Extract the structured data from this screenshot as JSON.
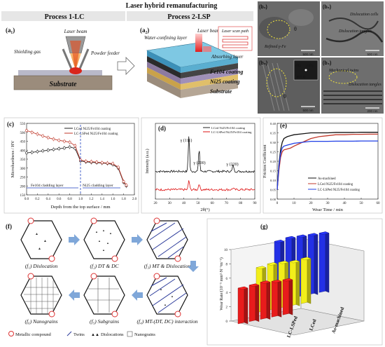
{
  "header": {
    "title": "Laser hybrid remanufacturing",
    "process1": "Process 1-LC",
    "process2": "Process 2-LSP"
  },
  "panel_a1": {
    "label": "(a₁)",
    "laser_beam": "Laser beam",
    "shielding_gas": "Shielding gas",
    "powder_feeder": "Powder feeder",
    "substrate": "Substrate"
  },
  "panel_a2": {
    "label": "(a₂)",
    "water_layer": "Water-confining layer",
    "laser_beam": "Laser beam",
    "scan_path": "Laser scan path",
    "absorbing_layer": "Absorbing layer",
    "fe104": "Fe104 coating",
    "ni25": "Ni25 coating",
    "substrate": "Substrate"
  },
  "panel_b": {
    "b1": {
      "label": "(b₁)",
      "theta": "θ",
      "anno": "Refined γ-Fe",
      "scale": "500 nm"
    },
    "b2": {
      "label": "(b₂)",
      "anno1": "Dislocation cells",
      "anno2": "Dislocation tangles",
      "scale": "500 nm"
    },
    "b3": {
      "label": "(b₃)",
      "theta": "θ",
      "inset1": "(1̅1)",
      "inset2": "(11̅1)",
      "inset3": "[0 1 1]",
      "scale": "500 nm"
    },
    "b4": {
      "label": "(b₄)",
      "anno1": "Mechanical twins",
      "anno2": "Dislocation tangles",
      "scale": "200 nm"
    }
  },
  "panel_c": {
    "label": "(c)",
    "ylabel": "Microhardness / HV",
    "xlabel": "Depth from the top surface / mm",
    "legend": [
      "LCed Ni25/Fe104 coating",
      "LC-LSPed Ni25/Fe104 coating"
    ],
    "fe_layer": "Fe104 cladding layer",
    "ni_layer": "Ni25 cladding layer",
    "colors": {
      "lc": "#222222",
      "lsp": "#c0392b",
      "layer": "#1f3fbf"
    }
  },
  "panel_d": {
    "label": "(d)",
    "ylabel": "Intensity (a.u.)",
    "xlabel": "2θ(°)",
    "legend": [
      "LCed Ni25/Fe104 coating",
      "LC-LSPed Ni25/Fe104 coating"
    ],
    "peaks": [
      "γ (111)",
      "γ (200)",
      "γ (220)"
    ]
  },
  "panel_e": {
    "label": "(e)",
    "ylabel": "Friction Coefficient",
    "xlabel": "Wear Time / min",
    "legend": [
      "As-machined",
      "LCed Ni25/Fe104 coating",
      "LC-LSPed Ni25/Fe104 coating"
    ]
  },
  "panel_f": {
    "label": "(f)",
    "captions": [
      "(f₁) Dislocation",
      "(f₂) DT & DC",
      "(f₃) MT & Dislocation",
      "(f₆) Nanograins",
      "(f₅) Subgrains",
      "(f₄) MT-(DT, DC) interaction"
    ],
    "legend": [
      "Metallic compound",
      "Twins",
      "Dislocations",
      "Nanograins"
    ]
  },
  "panel_g": {
    "label": "(g)",
    "zlabel": "Wear Rate/(10⁻⁵ mm³·N⁻¹m⁻¹)",
    "groups": [
      "LC-LSPed",
      "LCed",
      "As-machined"
    ]
  },
  "chart_data": [
    {
      "type": "line",
      "title": "",
      "xlabel": "Depth from the top surface / mm",
      "ylabel": "Microhardness / HV",
      "xlim": [
        0.0,
        2.0
      ],
      "ylim": [
        150,
        550
      ],
      "xticks": [
        "0.0",
        "0.2",
        "0.4",
        "0.6",
        "0.8",
        "1.0",
        "1.2",
        "1.4",
        "1.6",
        "1.8",
        "2.0"
      ],
      "yticks": [
        "150",
        "200",
        "250",
        "300",
        "350",
        "400",
        "450",
        "500",
        "550"
      ],
      "legend": "top-right",
      "x": [
        0.0,
        0.1,
        0.2,
        0.3,
        0.4,
        0.5,
        0.6,
        0.7,
        0.8,
        0.9,
        1.0,
        1.1,
        1.2,
        1.3,
        1.4,
        1.5,
        1.6,
        1.7,
        1.8,
        1.85
      ],
      "series": [
        {
          "name": "LCed Ni25/Fe104 coating",
          "values": [
            385,
            388,
            392,
            396,
            400,
            404,
            408,
            412,
            418,
            410,
            340,
            335,
            332,
            330,
            328,
            326,
            320,
            300,
            220,
            200
          ]
        },
        {
          "name": "LC-LSPed Ni25/Fe104 coating",
          "values": [
            510,
            500,
            490,
            480,
            470,
            462,
            455,
            450,
            445,
            425,
            345,
            338,
            336,
            333,
            330,
            328,
            325,
            305,
            225,
            205
          ]
        }
      ]
    },
    {
      "type": "line",
      "title": "",
      "xlabel": "2θ(°)",
      "ylabel": "Intensity (a.u.)",
      "xlim": [
        20,
        90
      ],
      "xticks": [
        "20",
        "30",
        "40",
        "50",
        "60",
        "70",
        "80",
        "90"
      ],
      "legend": "top-right",
      "peaks_2theta": [
        43.6,
        50.8,
        74.7
      ],
      "series": [
        {
          "name": "LCed Ni25/Fe104 coating",
          "peak_heights": [
            1.0,
            0.62,
            0.18
          ]
        },
        {
          "name": "LC-LSPed Ni25/Fe104 coating",
          "peak_heights": [
            0.45,
            0.3,
            0.08
          ]
        }
      ]
    },
    {
      "type": "line",
      "title": "",
      "xlabel": "Wear Time / min",
      "ylabel": "Friction Coefficient",
      "xlim": [
        0,
        60
      ],
      "ylim": [
        0.0,
        0.4
      ],
      "xticks": [
        "0",
        "10",
        "20",
        "30",
        "40",
        "50",
        "60"
      ],
      "yticks": [
        "0.00",
        "0.05",
        "0.10",
        "0.15",
        "0.20",
        "0.25",
        "0.30",
        "0.35",
        "0.40"
      ],
      "legend": "bottom-right",
      "x": [
        0,
        1,
        2,
        3,
        4,
        6,
        8,
        10,
        15,
        20,
        25,
        30,
        35,
        40,
        45,
        50,
        55,
        60
      ],
      "series": [
        {
          "name": "As-machined",
          "values": [
            0.05,
            0.18,
            0.26,
            0.3,
            0.32,
            0.33,
            0.335,
            0.34,
            0.345,
            0.35,
            0.35,
            0.35,
            0.352,
            0.352,
            0.352,
            0.353,
            0.353,
            0.353
          ]
        },
        {
          "name": "LCed Ni25/Fe104 coating",
          "values": [
            0.05,
            0.15,
            0.22,
            0.25,
            0.26,
            0.265,
            0.27,
            0.28,
            0.3,
            0.32,
            0.33,
            0.335,
            0.34,
            0.34,
            0.342,
            0.342,
            0.343,
            0.343
          ]
        },
        {
          "name": "LC-LSPed Ni25/Fe104 coating",
          "values": [
            0.05,
            0.17,
            0.24,
            0.27,
            0.28,
            0.285,
            0.29,
            0.295,
            0.3,
            0.305,
            0.305,
            0.305,
            0.306,
            0.306,
            0.306,
            0.307,
            0.307,
            0.307
          ]
        }
      ]
    },
    {
      "type": "bar",
      "title": "",
      "zlabel": "Wear Rate/(10⁻⁵ mm³·N⁻¹m⁻¹)",
      "zlim": [
        0,
        10
      ],
      "zticks": [
        "0",
        "2",
        "4",
        "6",
        "8",
        "10"
      ],
      "series": [
        {
          "name": "LC-LSPed",
          "color": "#e81c1c",
          "values": [
            5.0,
            5.1,
            5.2,
            5.0,
            4.9
          ]
        },
        {
          "name": "LCed",
          "color": "#f2ee1a",
          "values": [
            6.3,
            6.5,
            6.4,
            6.2,
            6.3
          ]
        },
        {
          "name": "As-machined",
          "color": "#2330e6",
          "values": [
            8.4,
            8.6,
            8.5,
            8.4,
            8.3
          ]
        }
      ]
    }
  ]
}
